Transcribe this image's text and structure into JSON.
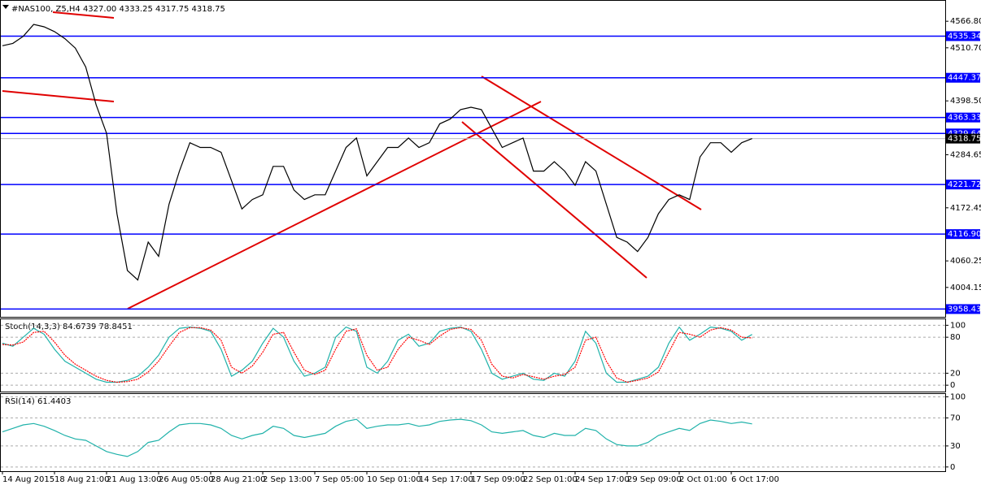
{
  "chart_data": [
    {
      "type": "line",
      "title": "#NAS100, Z5,H4  4327.00 4333.25 4317.75 4318.75",
      "categories": [
        "14 Aug 2015",
        null,
        null,
        null,
        null,
        "18 Aug 21:00",
        null,
        null,
        null,
        null,
        "21 Aug 13:00",
        null,
        null,
        null,
        null,
        "26 Aug 05:00",
        null,
        null,
        null,
        null,
        "28 Aug 21:00",
        null,
        null,
        null,
        null,
        "2 Sep 13:00",
        null,
        null,
        null,
        null,
        "7 Sep 05:00",
        null,
        null,
        null,
        null,
        "10 Sep 01:00",
        null,
        null,
        null,
        null,
        "14 Sep 17:00",
        null,
        null,
        null,
        null,
        "17 Sep 09:00",
        null,
        null,
        null,
        null,
        "22 Sep 01:00",
        null,
        null,
        null,
        null,
        "24 Sep 17:00",
        null,
        null,
        null,
        null,
        "29 Sep 09:00",
        null,
        null,
        null,
        null,
        "2 Oct 01:00",
        null,
        null,
        null,
        null,
        "6 Oct 17:00",
        null,
        null
      ],
      "series": [
        {
          "color": "#000000",
          "values": [
            4515,
            4520,
            4535,
            4560,
            4555,
            4545,
            4530,
            4510,
            4470,
            4390,
            4330,
            4160,
            4040,
            4020,
            4100,
            4070,
            4180,
            4250,
            4310,
            4300,
            4300,
            4290,
            4230,
            4170,
            4190,
            4200,
            4260,
            4260,
            4210,
            4190,
            4200,
            4200,
            4250,
            4300,
            4320,
            4240,
            4270,
            4300,
            4300,
            4320,
            4300,
            4310,
            4350,
            4360,
            4380,
            4385,
            4380,
            4340,
            4300,
            4310,
            4320,
            4250,
            4250,
            4270,
            4250,
            4220,
            4270,
            4250,
            4180,
            4110,
            4100,
            4080,
            4110,
            4160,
            4190,
            4200,
            4190,
            4280,
            4310,
            4310,
            4290,
            4310,
            4318.75
          ]
        }
      ],
      "ylim": [
        3942,
        4598
      ],
      "yticks": [
        {
          "value": 4566.8,
          "label": "4566.80"
        },
        {
          "value": 4510.7,
          "label": "4510.70"
        },
        {
          "value": 4398.5,
          "label": "4398.50"
        },
        4284.65,
        4172.45,
        4060.25,
        4004.15
      ],
      "levels": [
        4535.34,
        4447.37,
        4363.33,
        4329.64,
        4221.72,
        {
          "value": 4116.9,
          "label": "4116.90"
        },
        3958.43
      ],
      "level_color": "#0000ff",
      "last_price": 4318.75,
      "grid": false
    },
    {
      "type": "line",
      "title": "Stoch(14,3,3) 84.6739 78.8451",
      "series": [
        {
          "color": "#20b2aa",
          "values": [
            70,
            65,
            80,
            95,
            85,
            60,
            40,
            30,
            20,
            10,
            5,
            5,
            8,
            15,
            30,
            50,
            80,
            95,
            97,
            95,
            90,
            60,
            15,
            25,
            40,
            70,
            95,
            80,
            40,
            15,
            20,
            30,
            80,
            97,
            90,
            30,
            20,
            40,
            75,
            85,
            65,
            70,
            90,
            95,
            97,
            90,
            60,
            20,
            10,
            15,
            20,
            10,
            8,
            20,
            15,
            40,
            90,
            70,
            20,
            5,
            5,
            10,
            15,
            30,
            70,
            97,
            75,
            85,
            97,
            95,
            90,
            75,
            84.6739
          ]
        },
        {
          "color": "#ff0000",
          "values": [
            68,
            67,
            72,
            88,
            90,
            72,
            50,
            35,
            25,
            15,
            8,
            5,
            6,
            10,
            22,
            40,
            65,
            88,
            96,
            96,
            92,
            75,
            30,
            20,
            32,
            55,
            85,
            88,
            55,
            25,
            18,
            25,
            60,
            90,
            94,
            50,
            25,
            30,
            60,
            80,
            75,
            68,
            82,
            93,
            96,
            93,
            75,
            35,
            15,
            12,
            18,
            14,
            10,
            15,
            18,
            30,
            75,
            80,
            40,
            12,
            5,
            8,
            12,
            22,
            55,
            88,
            85,
            80,
            92,
            96,
            92,
            80,
            78.8451
          ]
        }
      ],
      "ylim": [
        -12,
        110
      ],
      "yticks": [
        0,
        20,
        80,
        100
      ],
      "grid": true
    },
    {
      "type": "line",
      "title": "RSI(14) 61.4403",
      "series": [
        {
          "color": "#20b2aa",
          "values": [
            50,
            55,
            60,
            62,
            58,
            52,
            45,
            40,
            38,
            30,
            22,
            18,
            15,
            22,
            35,
            38,
            50,
            60,
            62,
            62,
            60,
            55,
            45,
            40,
            45,
            48,
            58,
            55,
            45,
            42,
            45,
            48,
            58,
            65,
            68,
            55,
            58,
            60,
            60,
            62,
            58,
            60,
            65,
            67,
            68,
            66,
            60,
            50,
            48,
            50,
            52,
            45,
            42,
            48,
            45,
            45,
            55,
            52,
            40,
            32,
            30,
            30,
            35,
            45,
            50,
            55,
            52,
            62,
            67,
            65,
            62,
            64,
            61.4403
          ]
        }
      ],
      "ylim": [
        -6,
        104
      ],
      "yticks": [
        0,
        30,
        70,
        100
      ],
      "grid": true
    }
  ]
}
